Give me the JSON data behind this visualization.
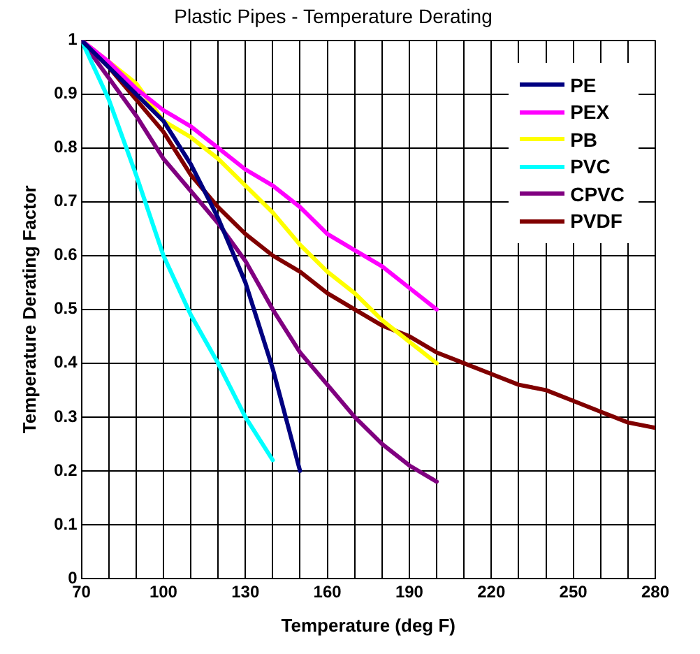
{
  "chart_data": {
    "type": "line",
    "title": "Plastic Pipes - Temperature Derating",
    "xlabel": "Temperature (deg F)",
    "ylabel": "Temperature Derating Factor",
    "xlim": [
      70,
      280
    ],
    "xticks": [
      70,
      {
        "value": 80,
        "label": null
      },
      {
        "value": 90,
        "label": null
      },
      100,
      {
        "value": 110,
        "label": null
      },
      {
        "value": 120,
        "label": null
      },
      130,
      {
        "value": 140,
        "label": null
      },
      {
        "value": 150,
        "label": null
      },
      160,
      {
        "value": 170,
        "label": null
      },
      {
        "value": 180,
        "label": null
      },
      190,
      {
        "value": 200,
        "label": null
      },
      {
        "value": 210,
        "label": null
      },
      220,
      {
        "value": 230,
        "label": null
      },
      {
        "value": 240,
        "label": null
      },
      250,
      {
        "value": 260,
        "label": null
      },
      {
        "value": 270,
        "label": null
      },
      280
    ],
    "ylim": [
      0,
      1
    ],
    "yticks": [
      0,
      0.1,
      0.2,
      0.3,
      0.4,
      0.5,
      0.6,
      0.7,
      0.8,
      0.9,
      1
    ],
    "grid": true,
    "legend": "top right",
    "marker": "none",
    "line_style": "solid",
    "series": [
      {
        "name": "PE",
        "color": "#000080",
        "x": [
          70,
          80,
          90,
          100,
          110,
          120,
          130,
          140,
          150
        ],
        "values": [
          1,
          0.95,
          0.9,
          0.85,
          0.77,
          0.67,
          0.55,
          0.39,
          0.2
        ]
      },
      {
        "name": "PEX",
        "color": "#ff00ff",
        "x": [
          70,
          80,
          90,
          100,
          110,
          120,
          130,
          140,
          150,
          160,
          170,
          180,
          190,
          200
        ],
        "values": [
          1,
          0.96,
          0.91,
          0.87,
          0.84,
          0.8,
          0.76,
          0.73,
          0.69,
          0.64,
          0.61,
          0.58,
          0.54,
          0.5
        ]
      },
      {
        "name": "PB",
        "color": "#ffff00",
        "x": [
          70,
          80,
          90,
          100,
          110,
          120,
          130,
          140,
          150,
          160,
          170,
          180,
          190,
          200
        ],
        "values": [
          1,
          0.96,
          0.92,
          0.85,
          0.82,
          0.78,
          0.73,
          0.68,
          0.62,
          0.57,
          0.53,
          0.48,
          0.44,
          0.4
        ]
      },
      {
        "name": "PVC",
        "color": "#00ffff",
        "x": [
          70,
          80,
          90,
          100,
          110,
          120,
          130,
          140
        ],
        "values": [
          1,
          0.89,
          0.75,
          0.6,
          0.49,
          0.4,
          0.3,
          0.22
        ]
      },
      {
        "name": "CPVC",
        "color": "#800080",
        "x": [
          70,
          80,
          90,
          100,
          110,
          120,
          130,
          140,
          150,
          160,
          170,
          180,
          190,
          200
        ],
        "values": [
          1,
          0.93,
          0.86,
          0.78,
          0.72,
          0.66,
          0.59,
          0.5,
          0.42,
          0.36,
          0.3,
          0.25,
          0.21,
          0.18
        ]
      },
      {
        "name": "PVDF",
        "color": "#800000",
        "x": [
          70,
          80,
          90,
          100,
          110,
          120,
          130,
          140,
          150,
          160,
          170,
          180,
          190,
          200,
          210,
          220,
          230,
          240,
          250,
          260,
          270,
          280
        ],
        "values": [
          1,
          0.95,
          0.89,
          0.83,
          0.75,
          0.69,
          0.64,
          0.6,
          0.57,
          0.53,
          0.5,
          0.47,
          0.45,
          0.42,
          0.4,
          0.38,
          0.36,
          0.35,
          0.33,
          0.31,
          0.29,
          0.28
        ]
      }
    ]
  }
}
